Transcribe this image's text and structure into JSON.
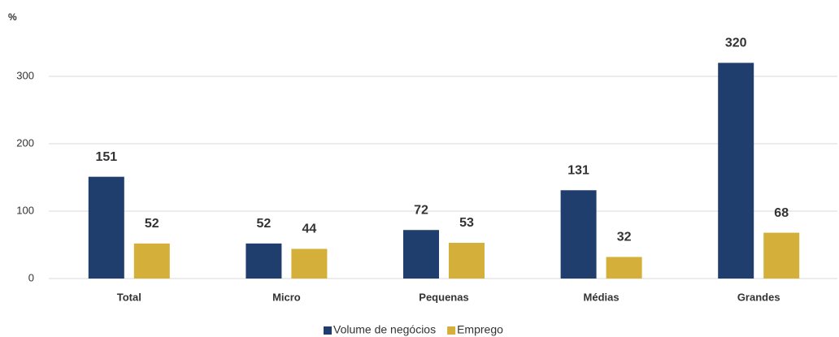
{
  "chart_data": {
    "type": "bar",
    "ylabel": "%",
    "categories": [
      "Total",
      "Micro",
      "Pequenas",
      "Médias",
      "Grandes"
    ],
    "series": [
      {
        "name": "Volume de negócios",
        "color": "#1f3e6e",
        "values": [
          151,
          52,
          72,
          131,
          320
        ]
      },
      {
        "name": "Emprego",
        "color": "#d4b03a",
        "values": [
          52,
          44,
          53,
          32,
          68
        ]
      }
    ],
    "ylim": [
      0,
      350
    ],
    "yticks": [
      0,
      100,
      200,
      300
    ],
    "grid": true,
    "legend": "bottom"
  }
}
